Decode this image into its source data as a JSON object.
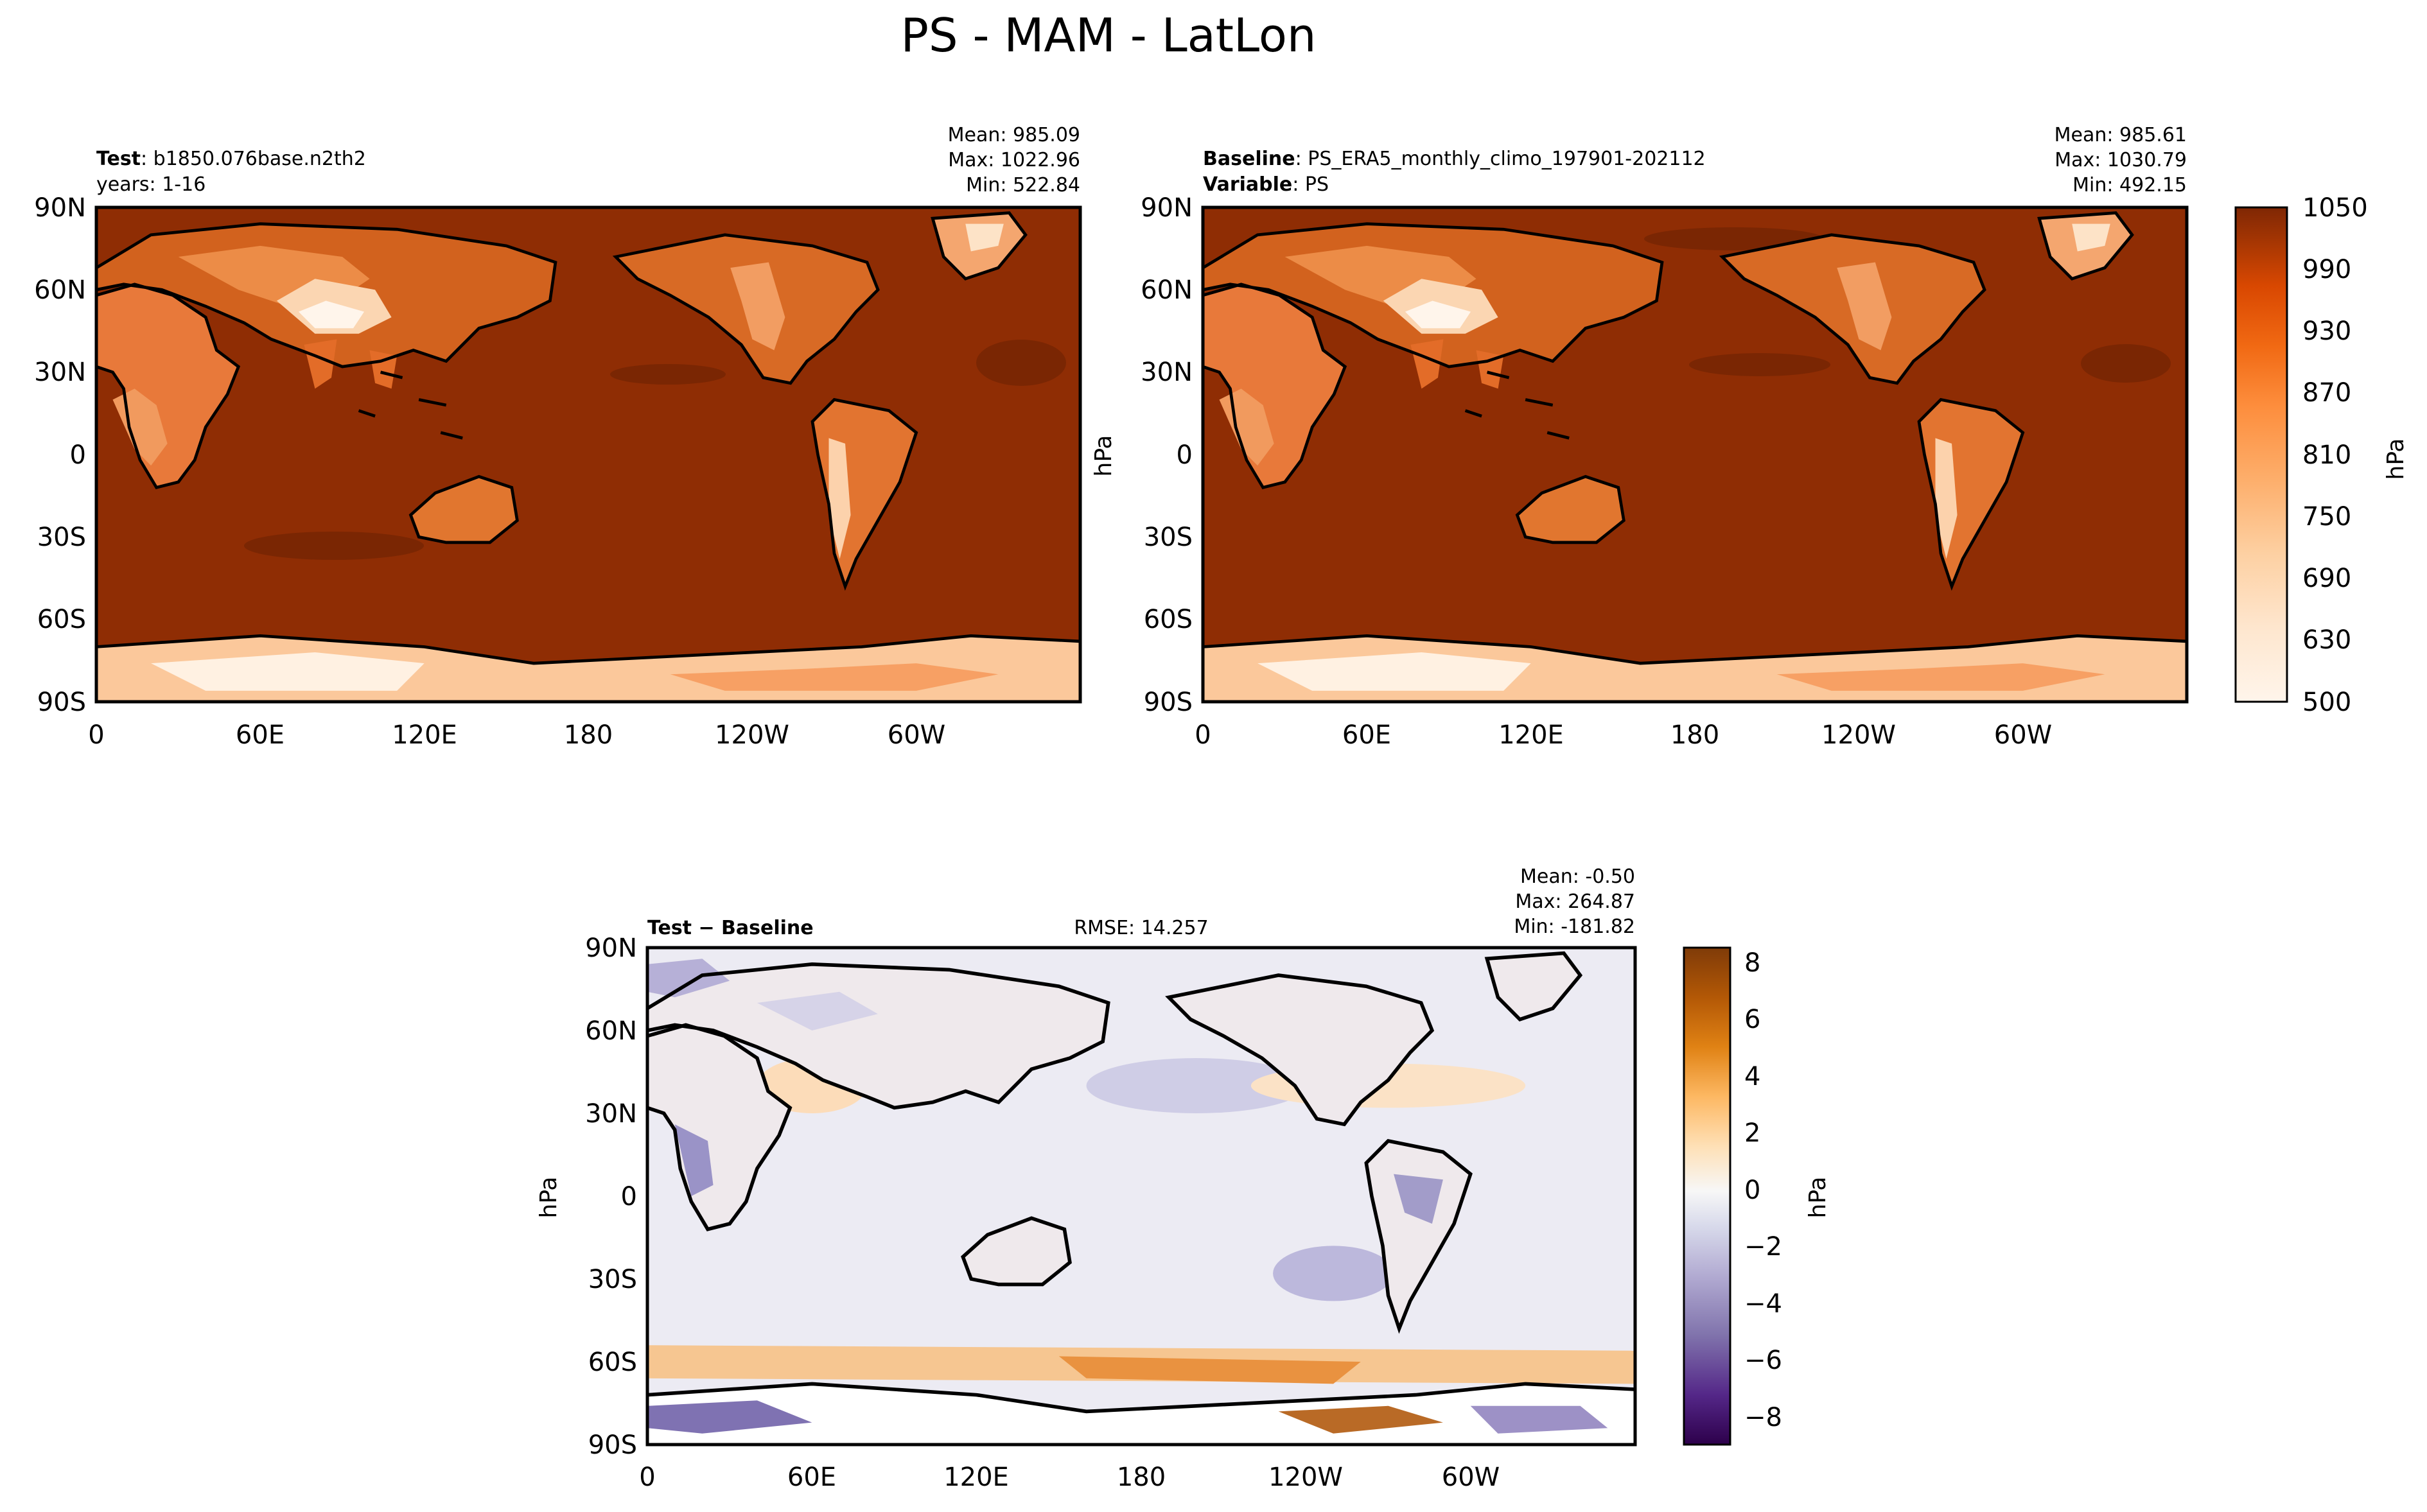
{
  "suptitle": "PS - MAM - LatLon",
  "colors": {
    "ps_scale": [
      "#fff5eb",
      "#fee6ce",
      "#fdd0a2",
      "#fdae6b",
      "#fd8d3c",
      "#f16913",
      "#d94801",
      "#a63603",
      "#7f2704"
    ],
    "ps_ocean": "#8f2d04",
    "ps_ocean_deep": "#7a2603",
    "diff_scale": [
      "#2d004b",
      "#542788",
      "#8073ac",
      "#b2abd2",
      "#d8daeb",
      "#f7f7f7",
      "#fee0b6",
      "#fdb863",
      "#e08214",
      "#b35806",
      "#7f3b08"
    ],
    "diff_ocean": "#ecebf3",
    "coast": "#000000"
  },
  "panels": {
    "test": {
      "label_bold": "Test",
      "label_rest": ": b1850.076base.n2th2",
      "line2": "years: 1-16",
      "mean": "Mean: 985.09",
      "max": "Max: 1022.96",
      "min": "Min: 522.84",
      "ylabel": ""
    },
    "baseline": {
      "label_bold": "Baseline",
      "label_rest": ": PS_ERA5_monthly_climo_197901-202112",
      "line2_bold": "Variable",
      "line2_rest": ": PS",
      "mean": "Mean: 985.61",
      "max": "Max: 1030.79",
      "min": "Min: 492.15",
      "ylabel": "hPa"
    },
    "diff": {
      "label": "Test − Baseline",
      "rmse": "RMSE: 14.257",
      "mean": "Mean: -0.50",
      "max": "Max: 264.87",
      "min": "Min: -181.82",
      "ylabel": "hPa"
    }
  },
  "colorbars": {
    "ps": {
      "label": "hPa",
      "ticks": [
        "1050",
        "990",
        "930",
        "870",
        "810",
        "750",
        "690",
        "630",
        "500"
      ]
    },
    "diff": {
      "label": "hPa",
      "ticks": [
        "8",
        "6",
        "4",
        "2",
        "0",
        "−2",
        "−4",
        "−6",
        "−8"
      ]
    }
  },
  "chart_data": [
    {
      "type": "heatmap",
      "title": "Test: b1850.076base.n2th2",
      "subtitle": "years: 1-16",
      "variable": "PS",
      "units": "hPa",
      "x_ticks": [
        "0",
        "60E",
        "120E",
        "180",
        "120W",
        "60W"
      ],
      "y_ticks": [
        "90N",
        "60N",
        "30N",
        "0",
        "30S",
        "60S",
        "90S"
      ],
      "xlim": [
        0,
        360
      ],
      "ylim": [
        -90,
        90
      ],
      "stats": {
        "mean": 985.09,
        "max": 1022.96,
        "min": 522.84
      },
      "colorbar_range": [
        500,
        1050
      ]
    },
    {
      "type": "heatmap",
      "title": "Baseline: PS_ERA5_monthly_climo_197901-202112",
      "subtitle": "Variable: PS",
      "units": "hPa",
      "x_ticks": [
        "0",
        "60E",
        "120E",
        "180",
        "120W",
        "60W"
      ],
      "y_ticks": [
        "90N",
        "60N",
        "30N",
        "0",
        "30S",
        "60S",
        "90S"
      ],
      "xlim": [
        0,
        360
      ],
      "ylim": [
        -90,
        90
      ],
      "stats": {
        "mean": 985.61,
        "max": 1030.79,
        "min": 492.15
      },
      "colorbar_range": [
        500,
        1050
      ]
    },
    {
      "type": "heatmap",
      "title": "Test − Baseline",
      "units": "hPa",
      "rmse": 14.257,
      "x_ticks": [
        "0",
        "60E",
        "120E",
        "180",
        "120W",
        "60W"
      ],
      "y_ticks": [
        "90N",
        "60N",
        "30N",
        "0",
        "30S",
        "60S",
        "90S"
      ],
      "xlim": [
        0,
        360
      ],
      "ylim": [
        -90,
        90
      ],
      "stats": {
        "mean": -0.5,
        "max": 264.87,
        "min": -181.82
      },
      "colorbar_range": [
        -9,
        8.5
      ]
    }
  ]
}
